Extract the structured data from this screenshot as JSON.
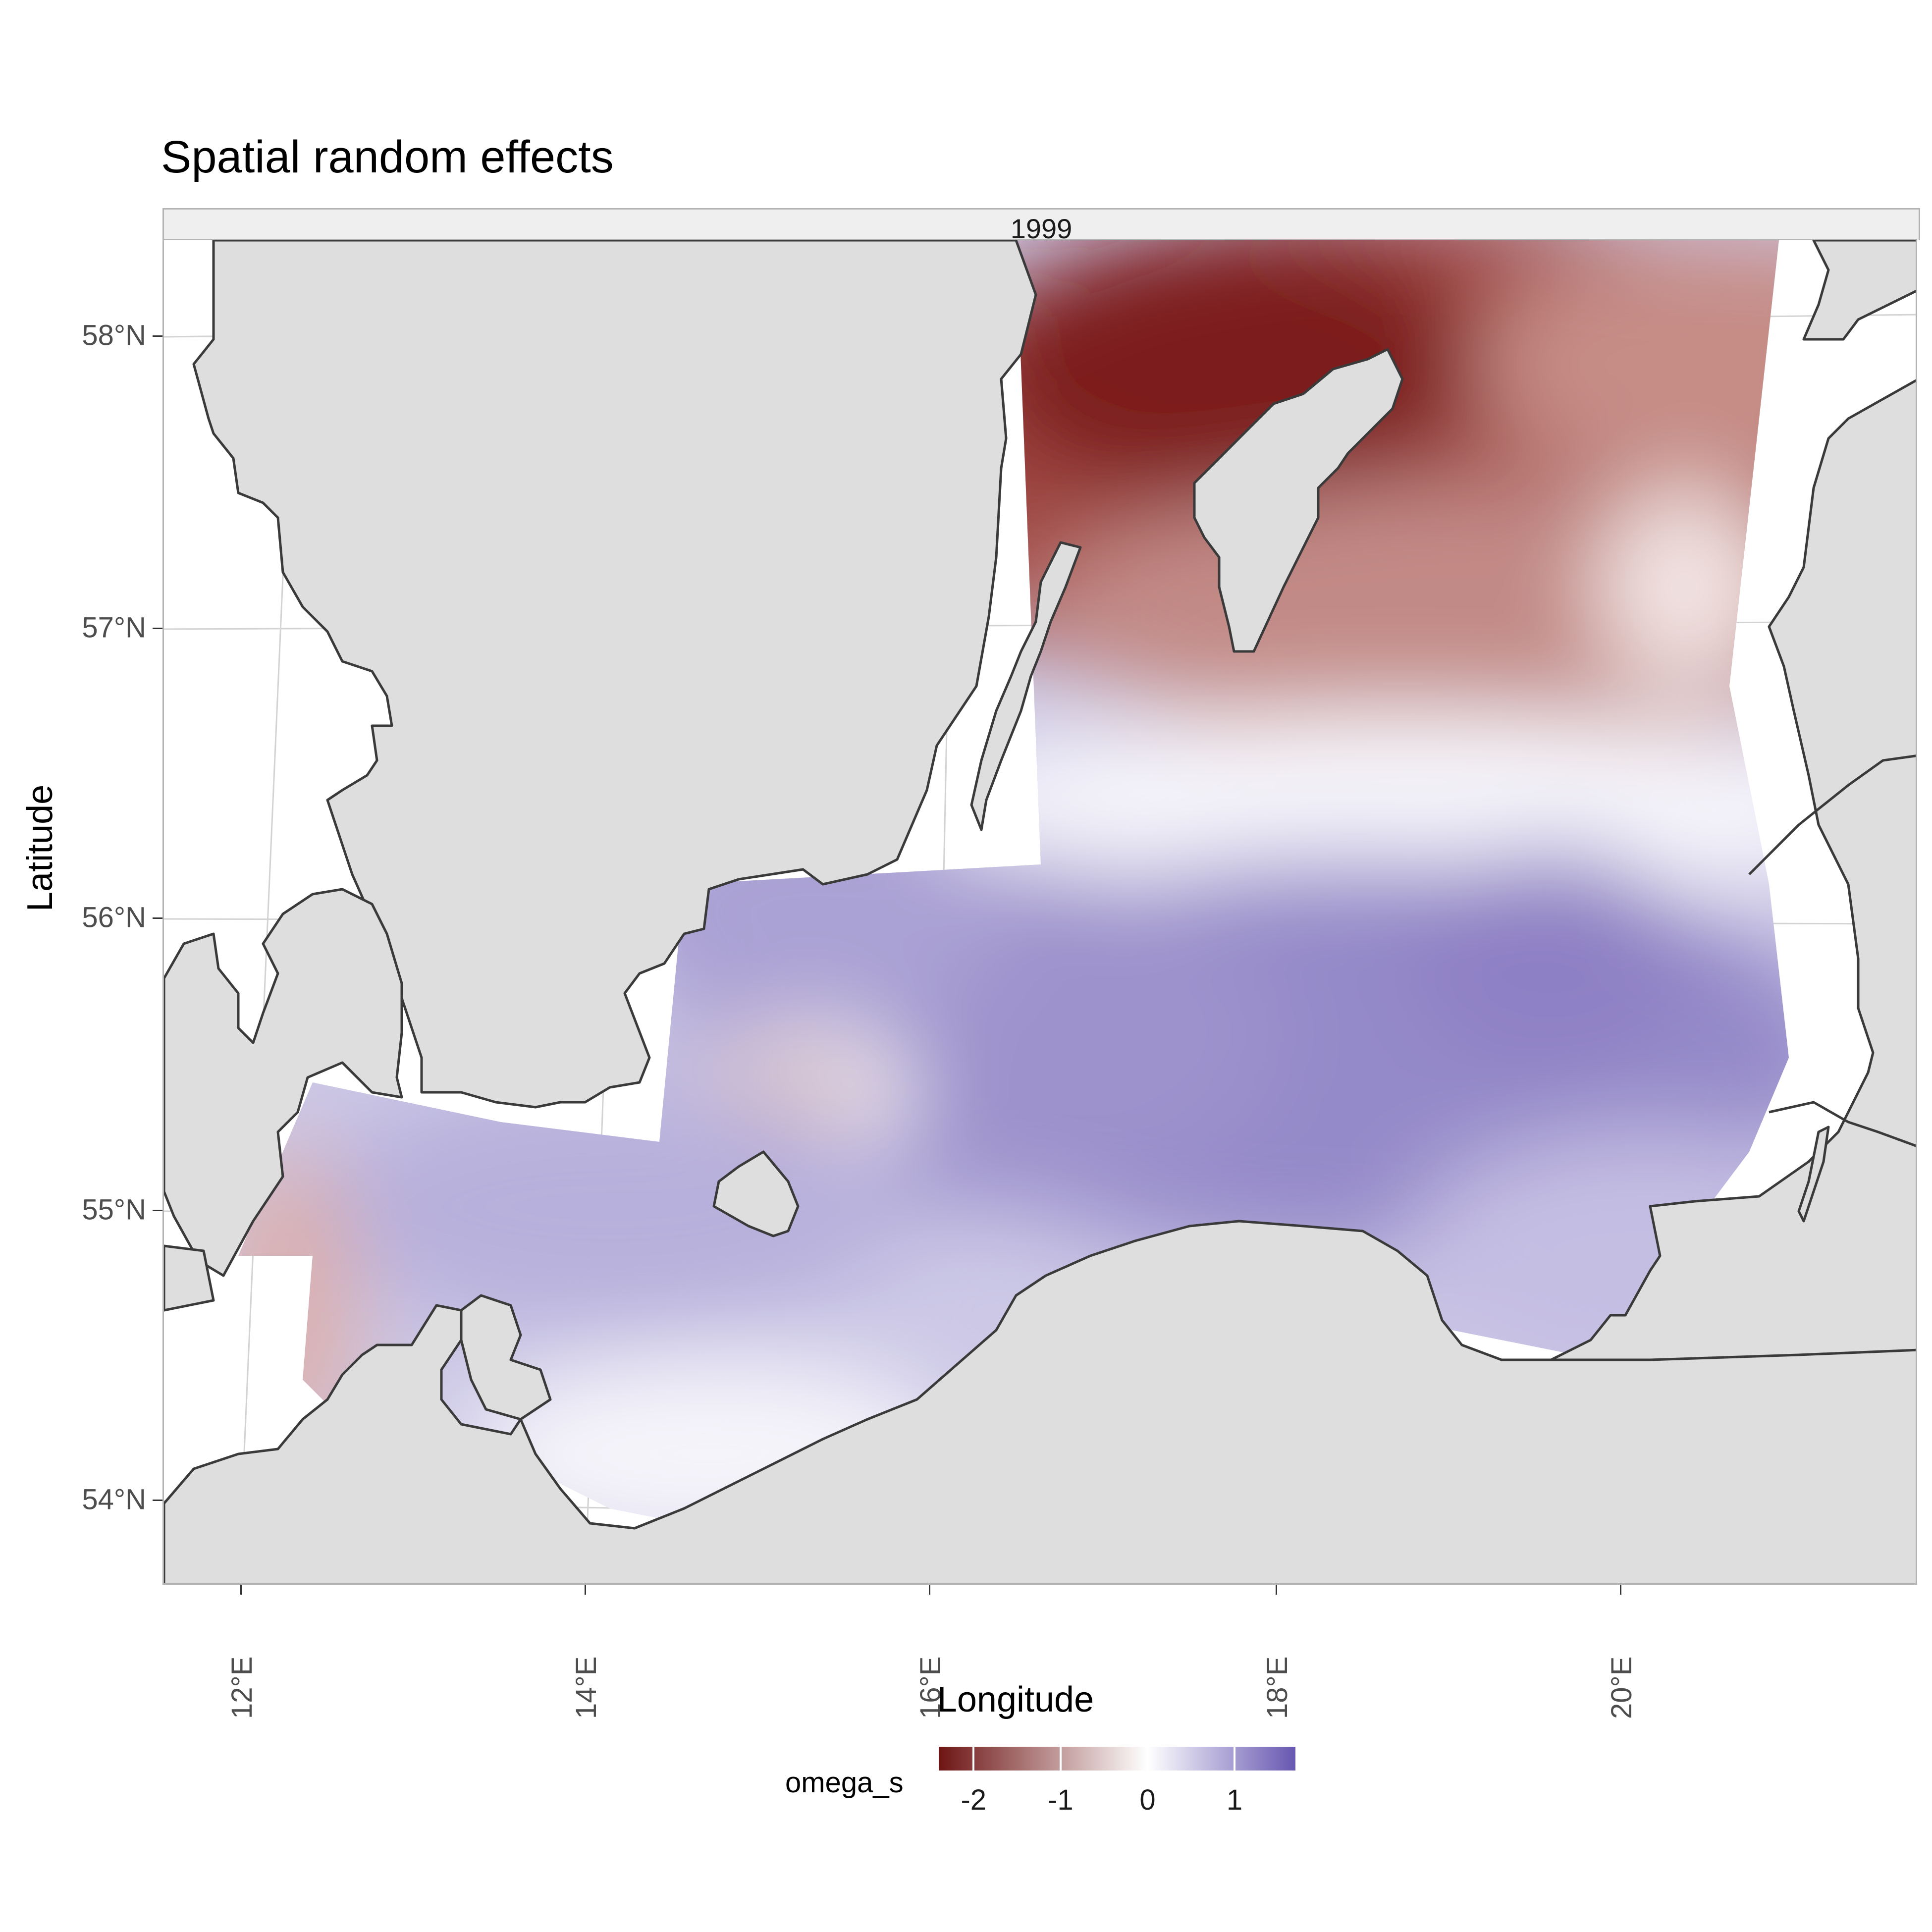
{
  "title": "Spatial random effects",
  "facet_label": "1999",
  "axes": {
    "x_label": "Longitude",
    "y_label": "Latitude",
    "x_ticks": [
      "12°E",
      "14°E",
      "16°E",
      "18°E",
      "20°E"
    ],
    "y_ticks": [
      "58°N",
      "57°N",
      "56°N",
      "55°N",
      "54°N"
    ],
    "lon_range": [
      11.5,
      21.7
    ],
    "lat_range": [
      53.72,
      58.35
    ]
  },
  "legend": {
    "title": "omega_s",
    "ticks": [
      "-2",
      "-1",
      "0",
      "1"
    ],
    "range": [
      -2.4,
      1.7
    ],
    "colors": {
      "low": "#6e1414",
      "mid": "#ffffff",
      "high": "#6757b1"
    }
  },
  "colors": {
    "land": "#dedede",
    "coastline": "#3a3a3a",
    "graticule": "#d3d3d3",
    "panel_border": "#b3b3b3",
    "strip_bg": "#efefef"
  }
}
